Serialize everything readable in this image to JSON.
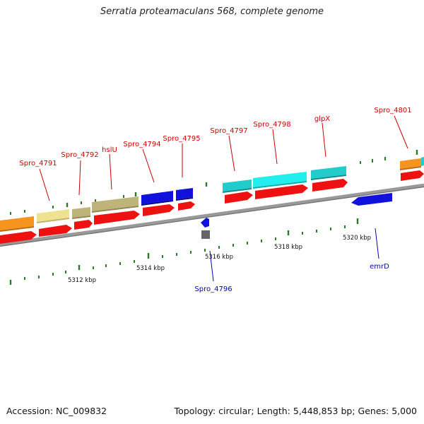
{
  "title": "Serratia proteamaculans 568, complete genome",
  "footer": {
    "accession": "Accession: NC_009832",
    "summary": "Topology: circular; Length: 5,448,853 bp; Genes: 5,000"
  },
  "colors": {
    "backbone": "#8a8a8a",
    "tick_major": "#2f8a2f",
    "tick_minor": "#2a7a2a",
    "gene_label_forward": "#cc0000",
    "gene_label_reverse": "#0000bb",
    "cds": "#ee1111",
    "orange": "#f7941d",
    "khaki_light": "#eee290",
    "khaki": "#beb47a",
    "blue": "#1111dd",
    "cyan": "#22cccc",
    "cyan_bright": "#22eeee",
    "gray": "#666666"
  },
  "genome_map": {
    "scale_labels": [
      "5312 kbp",
      "5314 kbp",
      "5316 kbp",
      "5318 kbp",
      "5320 kbp"
    ],
    "forward_labels": [
      "Spro_4791",
      "Spro_4792",
      "hslU",
      "Spro_4794",
      "Spro_4795",
      "Spro_4797",
      "Spro_4798",
      "glpX",
      "Spro_4801"
    ],
    "reverse_labels": [
      "Spro_4796",
      "emrD"
    ]
  }
}
